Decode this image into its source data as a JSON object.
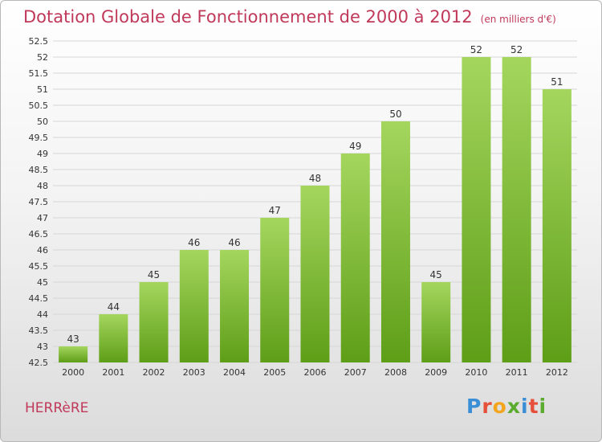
{
  "header": {
    "title": "Dotation Globale de Fonctionnement de 2000 à 2012",
    "unit": "(en milliers d'€)"
  },
  "footer": {
    "commune": "HERRèRE",
    "logo_text": "Proxiti",
    "logo_colors": [
      "#3a8ed6",
      "#e6503a",
      "#f2a51d",
      "#5aab2e",
      "#3a8ed6",
      "#e6503a",
      "#5aab2e"
    ]
  },
  "colors": {
    "title": "#c0395a",
    "bar_light": "#a4d65e",
    "bar_dark": "#5e9e17",
    "grid": "#d6d6d6",
    "axis_text": "#333333"
  },
  "chart_data": {
    "type": "bar",
    "categories": [
      "2000",
      "2001",
      "2002",
      "2003",
      "2004",
      "2005",
      "2006",
      "2007",
      "2008",
      "2009",
      "2010",
      "2011",
      "2012"
    ],
    "values": [
      43,
      44,
      45,
      46,
      46,
      47,
      48,
      49,
      50,
      45,
      52,
      52,
      51
    ],
    "ylim": [
      42.5,
      52.5
    ],
    "yticks": [
      "42.5",
      "43",
      "43.5",
      "44",
      "44.5",
      "45",
      "45.5",
      "46",
      "46.5",
      "47",
      "47.5",
      "48",
      "48.5",
      "49",
      "49.5",
      "50",
      "50.5",
      "51",
      "51.5",
      "52",
      "52.5"
    ],
    "grid": true,
    "xlabel": "",
    "ylabel": ""
  }
}
